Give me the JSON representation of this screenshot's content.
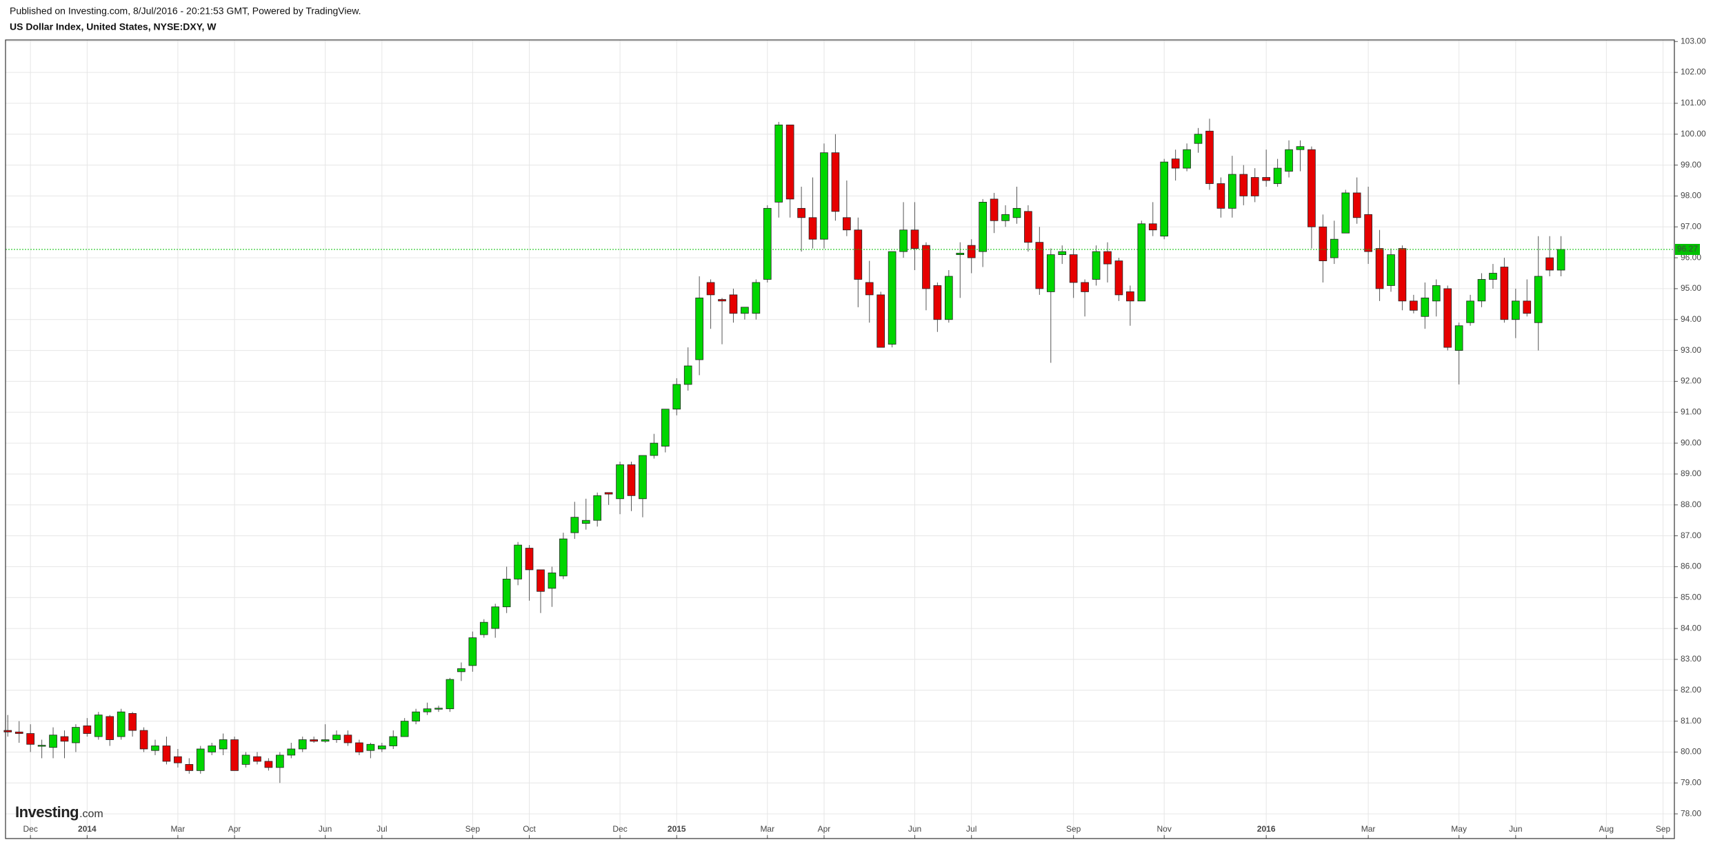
{
  "chart_data": {
    "type": "candlestick",
    "subtitle": "Published on Investing.com, 8/Jul/2016 - 20:21:53 GMT, Powered by TradingView.",
    "title": "US Dollar Index, United States, NYSE:DXY, W",
    "logo": "Investing",
    "logo_suffix": ".com",
    "up_color": "#00d600",
    "down_color": "#e60000",
    "grid": true,
    "last_price": 96.27,
    "last_price_color": "#00c000",
    "open": [
      80.7,
      80.65,
      80.6,
      80.2,
      80.15,
      80.5,
      80.3,
      80.85,
      80.5,
      81.15,
      80.5,
      81.25,
      80.7,
      80.05,
      80.2,
      79.85,
      79.6,
      79.4,
      80.0,
      80.1,
      80.4,
      79.6,
      79.85,
      79.7,
      79.5,
      79.9,
      80.1,
      80.4,
      80.35,
      80.4,
      80.55,
      80.3,
      80.05,
      80.1,
      80.2,
      80.5,
      81.0,
      81.3,
      81.4,
      81.4,
      82.6,
      82.8,
      83.8,
      84.0,
      84.7,
      85.6,
      86.6,
      85.9,
      85.3,
      85.7,
      87.1,
      87.4,
      87.5,
      88.4,
      88.2,
      89.3,
      88.2,
      89.6,
      89.9,
      91.1,
      91.9,
      92.7,
      95.2,
      94.65,
      94.8,
      94.2,
      94.2,
      95.3,
      97.8,
      100.3,
      97.6,
      97.3,
      96.6,
      99.4,
      97.3,
      96.9,
      95.2,
      94.8,
      93.2,
      96.2,
      96.9,
      96.4,
      95.1,
      94.0,
      96.1,
      96.4,
      96.2,
      97.9,
      97.2,
      97.3,
      97.5,
      96.5,
      94.9,
      96.1,
      96.1,
      95.2,
      95.3,
      96.2,
      95.9,
      94.9,
      94.6,
      97.1,
      96.7,
      99.2,
      98.9,
      99.7,
      100.1,
      98.4,
      97.6,
      98.7,
      98.6,
      98.6,
      98.4,
      98.8,
      99.5,
      99.5,
      97.0,
      96.0,
      96.8,
      98.1,
      97.4,
      96.3,
      95.1,
      96.3,
      94.6,
      94.1,
      94.6,
      95.0,
      93.0,
      93.9,
      94.6,
      95.3,
      95.7,
      94.0,
      94.6,
      93.9,
      96.0,
      95.6
    ],
    "high": [
      81.2,
      81.0,
      80.9,
      80.4,
      80.8,
      80.7,
      80.9,
      81.1,
      81.3,
      81.2,
      81.4,
      81.3,
      80.8,
      80.4,
      80.5,
      80.1,
      79.8,
      80.2,
      80.3,
      80.6,
      80.5,
      80.0,
      80.0,
      79.8,
      80.0,
      80.3,
      80.5,
      80.5,
      80.9,
      80.7,
      80.7,
      80.4,
      80.3,
      80.3,
      80.7,
      81.1,
      81.4,
      81.6,
      81.5,
      82.4,
      82.9,
      83.9,
      84.3,
      84.8,
      86.0,
      86.8,
      86.7,
      85.9,
      86.0,
      87.1,
      88.1,
      88.2,
      88.4,
      88.4,
      89.4,
      89.4,
      89.6,
      90.3,
      91.1,
      92.1,
      93.1,
      95.4,
      95.3,
      94.7,
      95.0,
      94.4,
      95.3,
      97.7,
      100.4,
      100.3,
      98.3,
      98.6,
      99.7,
      100.0,
      98.5,
      97.3,
      95.9,
      94.9,
      96.2,
      97.8,
      97.8,
      96.5,
      95.2,
      95.6,
      96.5,
      96.6,
      97.9,
      98.1,
      97.7,
      98.3,
      97.7,
      97.0,
      96.3,
      96.4,
      96.3,
      95.3,
      96.4,
      96.5,
      96.0,
      95.1,
      97.2,
      97.8,
      99.2,
      99.5,
      99.7,
      100.2,
      100.5,
      98.6,
      99.3,
      99.0,
      98.9,
      99.5,
      99.2,
      99.8,
      99.8,
      99.6,
      97.4,
      97.2,
      98.2,
      98.6,
      98.3,
      96.9,
      96.3,
      96.4,
      94.8,
      95.2,
      95.3,
      95.1,
      93.9,
      94.8,
      95.5,
      95.8,
      96.0,
      95.0,
      95.3,
      96.7,
      96.7,
      96.7
    ],
    "low": [
      80.5,
      80.3,
      80.0,
      79.8,
      79.8,
      79.8,
      80.0,
      80.5,
      80.4,
      80.2,
      80.4,
      80.5,
      80.0,
      79.9,
      79.6,
      79.5,
      79.3,
      79.3,
      79.9,
      79.9,
      79.4,
      79.5,
      79.6,
      79.4,
      79.0,
      79.8,
      80.0,
      80.3,
      80.3,
      80.3,
      80.2,
      79.9,
      79.8,
      80.0,
      80.1,
      80.5,
      80.9,
      81.2,
      81.3,
      81.3,
      82.3,
      82.6,
      83.7,
      83.7,
      84.5,
      85.4,
      84.9,
      84.5,
      84.7,
      85.6,
      86.9,
      87.2,
      87.3,
      88.0,
      87.7,
      87.8,
      87.6,
      89.5,
      89.7,
      90.9,
      91.7,
      92.2,
      93.7,
      93.2,
      93.9,
      94.0,
      94.0,
      95.2,
      97.3,
      97.3,
      96.2,
      96.3,
      96.3,
      97.2,
      96.7,
      94.4,
      93.9,
      93.1,
      93.1,
      96.0,
      95.6,
      94.3,
      93.6,
      93.9,
      94.7,
      95.5,
      95.7,
      96.8,
      97.0,
      97.1,
      96.2,
      94.8,
      92.6,
      95.8,
      94.7,
      94.1,
      95.1,
      95.2,
      94.6,
      93.8,
      94.6,
      96.7,
      96.6,
      98.5,
      98.8,
      99.4,
      98.2,
      97.3,
      97.3,
      97.7,
      97.8,
      98.3,
      98.3,
      98.6,
      98.8,
      96.3,
      95.2,
      95.8,
      96.8,
      97.1,
      95.8,
      94.6,
      94.9,
      94.3,
      94.2,
      93.7,
      94.1,
      93.0,
      91.9,
      93.8,
      94.4,
      95.0,
      93.9,
      93.4,
      94.1,
      93.0,
      95.4,
      95.4
    ],
    "close": [
      80.65,
      80.6,
      80.25,
      80.22,
      80.55,
      80.35,
      80.8,
      80.6,
      81.2,
      80.4,
      81.3,
      80.7,
      80.1,
      80.2,
      79.7,
      79.65,
      79.4,
      80.1,
      80.2,
      80.4,
      79.4,
      79.9,
      79.7,
      79.5,
      79.9,
      80.1,
      80.4,
      80.35,
      80.4,
      80.55,
      80.3,
      80.0,
      80.25,
      80.2,
      80.5,
      81.0,
      81.3,
      81.4,
      81.42,
      82.35,
      82.7,
      83.7,
      84.2,
      84.7,
      85.6,
      86.7,
      85.9,
      85.2,
      85.8,
      86.9,
      87.6,
      87.5,
      88.3,
      88.35,
      89.3,
      88.3,
      89.6,
      90.0,
      91.1,
      91.9,
      92.5,
      94.7,
      94.8,
      94.6,
      94.2,
      94.4,
      95.2,
      97.6,
      100.3,
      97.9,
      97.3,
      96.6,
      99.4,
      97.5,
      96.9,
      95.3,
      94.8,
      93.1,
      96.2,
      96.9,
      96.3,
      95.0,
      94.0,
      95.4,
      96.15,
      96.0,
      97.8,
      97.2,
      97.4,
      97.6,
      96.5,
      95.0,
      96.1,
      96.2,
      95.2,
      94.9,
      96.2,
      95.8,
      94.8,
      94.6,
      97.1,
      96.9,
      99.1,
      98.9,
      99.5,
      100.0,
      98.4,
      97.6,
      98.7,
      98.0,
      98.0,
      98.5,
      98.9,
      99.5,
      99.6,
      97.0,
      95.9,
      96.6,
      98.1,
      97.3,
      96.2,
      95.0,
      96.1,
      94.6,
      94.3,
      94.7,
      95.1,
      93.1,
      93.8,
      94.6,
      95.3,
      95.5,
      94.0,
      94.6,
      94.2,
      95.4,
      95.6,
      96.27
    ],
    "xlim": [
      -0.2,
      147
    ],
    "xticks": [
      {
        "value": 2,
        "label": "Dec"
      },
      {
        "value": 7,
        "label": "2014"
      },
      {
        "value": 15,
        "label": "Mar"
      },
      {
        "value": 20,
        "label": "Apr"
      },
      {
        "value": 28,
        "label": "Jun"
      },
      {
        "value": 33,
        "label": "Jul"
      },
      {
        "value": 41,
        "label": "Sep"
      },
      {
        "value": 46,
        "label": "Oct"
      },
      {
        "value": 54,
        "label": "Dec"
      },
      {
        "value": 59,
        "label": "2015"
      },
      {
        "value": 67,
        "label": "Mar"
      },
      {
        "value": 72,
        "label": "Apr"
      },
      {
        "value": 80,
        "label": "Jun"
      },
      {
        "value": 85,
        "label": "Jul"
      },
      {
        "value": 94,
        "label": "Sep"
      },
      {
        "value": 102,
        "label": "Nov"
      },
      {
        "value": 111,
        "label": "2016"
      },
      {
        "value": 120,
        "label": "Mar"
      },
      {
        "value": 128,
        "label": "May"
      },
      {
        "value": 133,
        "label": "Jun"
      },
      {
        "value": 141,
        "label": "Aug"
      },
      {
        "value": 146,
        "label": "Sep"
      }
    ],
    "ylim": [
      77.2,
      103.05
    ],
    "yticks": [
      {
        "value": 78,
        "label": "78.00"
      },
      {
        "value": 79,
        "label": "79.00"
      },
      {
        "value": 80,
        "label": "80.00"
      },
      {
        "value": 81,
        "label": "81.00"
      },
      {
        "value": 82,
        "label": "82.00"
      },
      {
        "value": 83,
        "label": "83.00"
      },
      {
        "value": 84,
        "label": "84.00"
      },
      {
        "value": 85,
        "label": "85.00"
      },
      {
        "value": 86,
        "label": "86.00"
      },
      {
        "value": 87,
        "label": "87.00"
      },
      {
        "value": 88,
        "label": "88.00"
      },
      {
        "value": 89,
        "label": "89.00"
      },
      {
        "value": 90,
        "label": "90.00"
      },
      {
        "value": 91,
        "label": "91.00"
      },
      {
        "value": 92,
        "label": "92.00"
      },
      {
        "value": 93,
        "label": "93.00"
      },
      {
        "value": 94,
        "label": "94.00"
      },
      {
        "value": 95,
        "label": "95.00"
      },
      {
        "value": 96,
        "label": "96.00"
      },
      {
        "value": 97,
        "label": "97.00"
      },
      {
        "value": 98,
        "label": "98.00"
      },
      {
        "value": 99,
        "label": "99.00"
      },
      {
        "value": 100,
        "label": "100.00"
      },
      {
        "value": 101,
        "label": "101.00"
      },
      {
        "value": 102,
        "label": "102.00"
      },
      {
        "value": 103,
        "label": "103.00"
      }
    ]
  }
}
